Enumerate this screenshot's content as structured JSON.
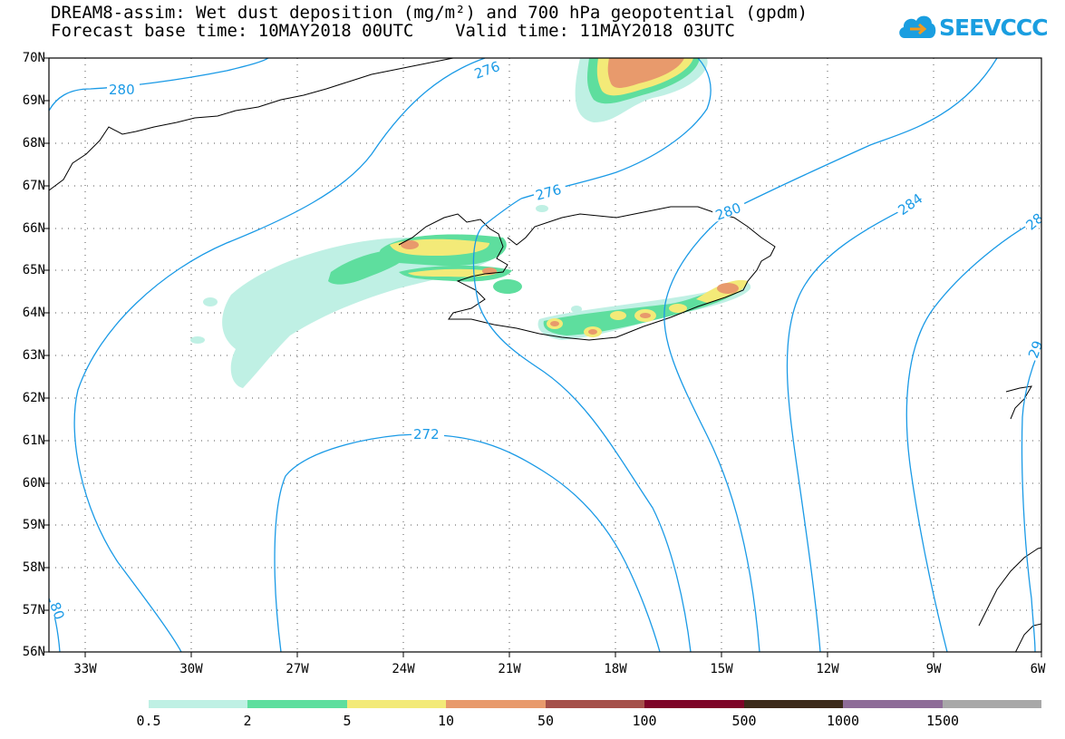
{
  "header": {
    "title_line1": "DREAM8-assim: Wet dust deposition (mg/m²) and 700 hPa geopotential (gpdm)",
    "title_line2": "Forecast base time: 10MAY2018 00UTC    Valid time: 11MAY2018 03UTC",
    "logo_text": "SEEVCCC",
    "logo_icon": "cloud-icon"
  },
  "map": {
    "lat_labels": [
      "70N",
      "69N",
      "68N",
      "67N",
      "66N",
      "65N",
      "64N",
      "63N",
      "62N",
      "61N",
      "60N",
      "59N",
      "58N",
      "57N",
      "56N"
    ],
    "lon_labels": [
      "33W",
      "30W",
      "27W",
      "24W",
      "21W",
      "18W",
      "15W",
      "12W",
      "9W",
      "6W"
    ],
    "contour_labels": [
      "280",
      "276",
      "276",
      "280",
      "284",
      "28",
      "29",
      "272",
      "80"
    ],
    "contour_color": "#1a9ae6",
    "coast_color": "#000000"
  },
  "colorbar": {
    "ticks": [
      "0.5",
      "2",
      "5",
      "10",
      "50",
      "100",
      "500",
      "1000",
      "1500"
    ],
    "colors": [
      "#bff0e4",
      "#5ede9e",
      "#f3ea78",
      "#e89a6c",
      "#a5504a",
      "#7e0428",
      "#3c2a1a",
      "#8e6c98",
      "#a8a8a8"
    ]
  }
}
